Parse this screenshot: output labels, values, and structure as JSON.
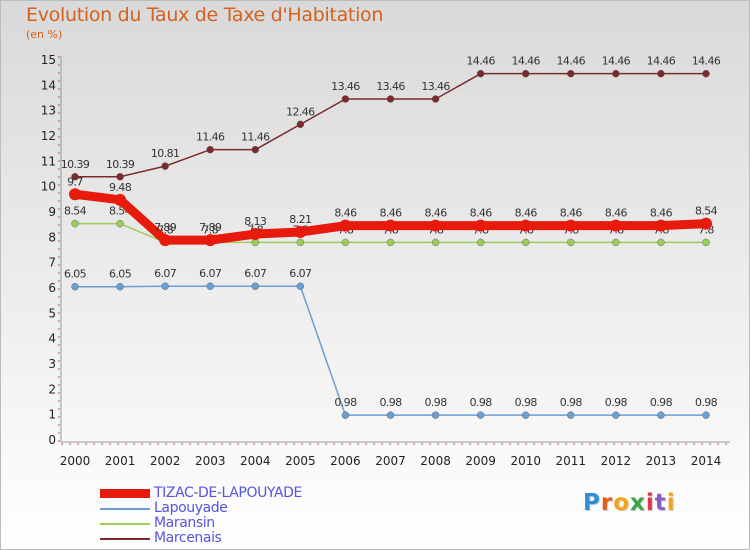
{
  "header": {
    "title": "Evolution du Taux de Taxe d'Habitation",
    "unit": "(en %)"
  },
  "chart_data": {
    "type": "line",
    "title": "Evolution du Taux de Taxe d'Habitation",
    "ylabel": "(en %)",
    "xlabel": "",
    "ylim": [
      0,
      15
    ],
    "categories": [
      "2000",
      "2001",
      "2002",
      "2003",
      "2004",
      "2005",
      "2006",
      "2007",
      "2008",
      "2009",
      "2010",
      "2011",
      "2012",
      "2013",
      "2014"
    ],
    "y_ticks": [
      "0",
      "1",
      "2",
      "3",
      "4",
      "5",
      "6",
      "7",
      "8",
      "9",
      "10",
      "11",
      "12",
      "13",
      "14",
      "15"
    ],
    "series": [
      {
        "name": "Marcenais",
        "color": "#7b2b2b",
        "values": [
          10.39,
          10.39,
          10.81,
          11.46,
          11.46,
          12.46,
          13.46,
          13.46,
          13.46,
          14.46,
          14.46,
          14.46,
          14.46,
          14.46,
          14.46
        ],
        "labels": [
          "10.39",
          "10.39",
          "10.81",
          "11.46",
          "11.46",
          "12.46",
          "13.46",
          "13.46",
          "13.46",
          "14.46",
          "14.46",
          "14.46",
          "14.46",
          "14.46",
          "14.46"
        ]
      },
      {
        "name": "Lapouyade",
        "color": "#6b9fd4",
        "values": [
          6.05,
          6.05,
          6.07,
          6.07,
          6.07,
          6.07,
          0.98,
          0.98,
          0.98,
          0.98,
          0.98,
          0.98,
          0.98,
          0.98,
          0.98
        ],
        "labels": [
          "6.05",
          "6.05",
          "6.07",
          "6.07",
          "6.07",
          "6.07",
          "0.98",
          "0.98",
          "0.98",
          "0.98",
          "0.98",
          "0.98",
          "0.98",
          "0.98",
          "0.98"
        ]
      },
      {
        "name": "Maransin",
        "color": "#9acd5b",
        "values": [
          8.54,
          8.54,
          7.8,
          7.8,
          7.8,
          7.8,
          7.8,
          7.8,
          7.8,
          7.8,
          7.8,
          7.8,
          7.8,
          7.8,
          7.8
        ],
        "labels": [
          "8.54",
          "8.54",
          "7.8",
          "7.8",
          "7.8",
          "7.8",
          "7.8",
          "7.8",
          "7.8",
          "7.8",
          "7.8",
          "7.8",
          "7.8",
          "7.8",
          "7.8"
        ]
      },
      {
        "name": "TIZAC-DE-LAPOUYADE",
        "color": "#e81a0c",
        "values": [
          9.7,
          9.48,
          7.89,
          7.89,
          8.13,
          8.21,
          8.46,
          8.46,
          8.46,
          8.46,
          8.46,
          8.46,
          8.46,
          8.46,
          8.54
        ],
        "labels": [
          "9.7",
          "9.48",
          "7.89",
          "7.89",
          "8.13",
          "8.21",
          "8.46",
          "8.46",
          "8.46",
          "8.46",
          "8.46",
          "8.46",
          "8.46",
          "8.46",
          "8.54"
        ]
      }
    ],
    "legend": [
      {
        "name": "TIZAC-DE-LAPOUYADE",
        "color": "#e81a0c"
      },
      {
        "name": "Lapouyade",
        "color": "#6b9fd4"
      },
      {
        "name": "Maransin",
        "color": "#9acd5b"
      },
      {
        "name": "Marcenais",
        "color": "#7b2b2b"
      }
    ],
    "legend_position": "bottom-left"
  },
  "logo": {
    "letters": [
      "P",
      "r",
      "o",
      "x",
      "i",
      "t",
      "i"
    ],
    "colors": [
      "#2e8fd6",
      "#e35d1f",
      "#f2a516",
      "#3aa54a",
      "#e3364a",
      "#8a5fc2",
      "#f2a516"
    ]
  }
}
